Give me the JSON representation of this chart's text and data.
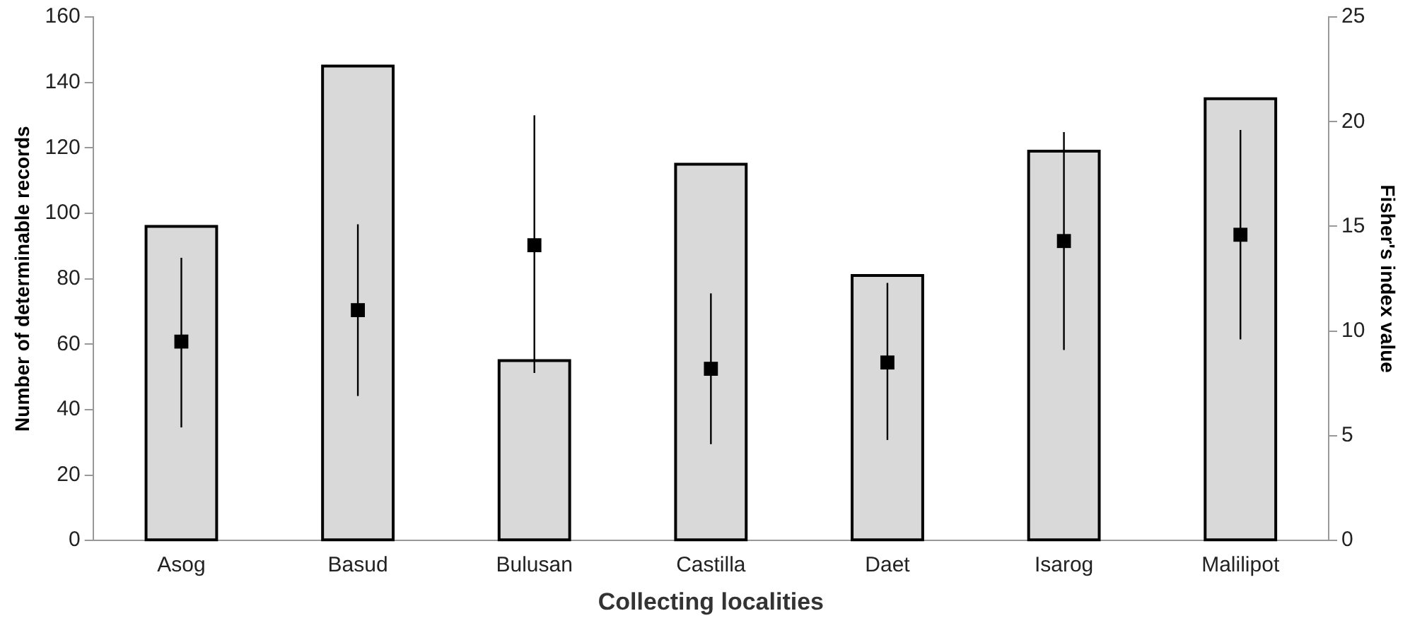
{
  "chart_data": {
    "type": "bar",
    "xlabel": "Collecting localities",
    "ylabel": "Number of determinable records",
    "y2label": "Fisher's index value",
    "categories": [
      "Asog",
      "Basud",
      "Bulusan",
      "Castilla",
      "Daet",
      "Isarog",
      "Malilipot"
    ],
    "series": [
      {
        "color": "#d9d9d9",
        "values": [
          96,
          145,
          55,
          115,
          81,
          119,
          135
        ]
      },
      {
        "type": "scatter",
        "axis": "y2",
        "color": "#000000",
        "values": [
          9.5,
          11.0,
          14.1,
          8.2,
          8.5,
          14.3,
          14.6
        ],
        "errors": [
          [
            5.4,
            13.5
          ],
          [
            6.9,
            15.1
          ],
          [
            8.0,
            20.3
          ],
          [
            4.6,
            11.8
          ],
          [
            4.8,
            12.3
          ],
          [
            9.1,
            19.5
          ],
          [
            9.6,
            19.6
          ]
        ]
      }
    ],
    "ylim": [
      0,
      160
    ],
    "yticks": [
      0,
      20,
      40,
      60,
      80,
      100,
      120,
      140,
      160
    ],
    "y2lim": [
      0,
      25
    ],
    "y2ticks": [
      0,
      5,
      10,
      15,
      20,
      25
    ],
    "grid": false,
    "legend": false,
    "marker": "square"
  }
}
